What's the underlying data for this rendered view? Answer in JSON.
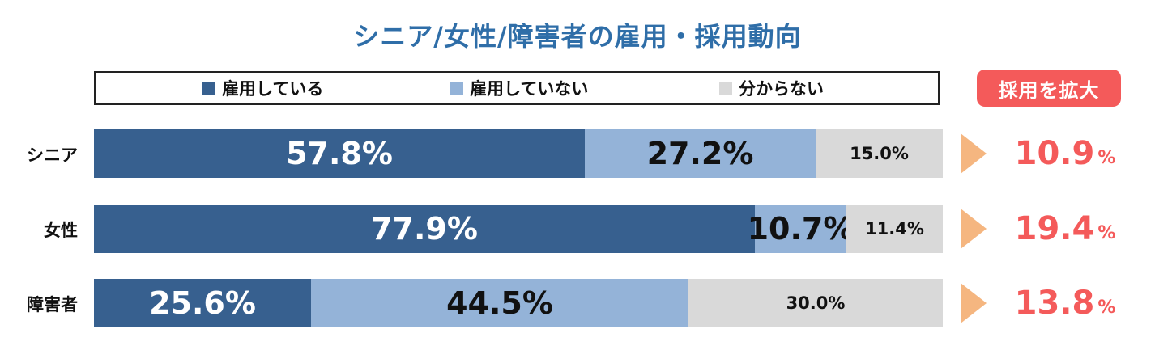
{
  "title": "シニア/女性/障害者の雇用・採用動向",
  "badge": "採用を拡大",
  "colors": {
    "employed": "#37608f",
    "not_employed": "#94b3d8",
    "unknown": "#d9d9d9",
    "accent": "#f45a5a",
    "arrow": "#f5b680"
  },
  "legend": [
    {
      "label": "雇用している",
      "color": "#37608f"
    },
    {
      "label": "雇用していない",
      "color": "#94b3d8"
    },
    {
      "label": "分からない",
      "color": "#d9d9d9"
    }
  ],
  "unit": "%",
  "chart_data": {
    "type": "bar",
    "orientation": "horizontal",
    "stacked": true,
    "title": "シニア/女性/障害者の雇用・採用動向",
    "categories": [
      "シニア",
      "女性",
      "障害者"
    ],
    "series": [
      {
        "name": "雇用している",
        "values": [
          57.8,
          77.9,
          25.6
        ],
        "labels": [
          "57.8%",
          "77.9%",
          "25.6%"
        ]
      },
      {
        "name": "雇用していない",
        "values": [
          27.2,
          10.7,
          44.5
        ],
        "labels": [
          "27.2%",
          "10.7%",
          "44.5%"
        ]
      },
      {
        "name": "分からない",
        "values": [
          15.0,
          11.4,
          30.0
        ],
        "labels": [
          "15.0%",
          "11.4%",
          "30.0%"
        ]
      }
    ],
    "annotation": {
      "label": "採用を拡大",
      "values": [
        10.9,
        19.4,
        13.8
      ],
      "labels": [
        "10.9",
        "19.4",
        "13.8"
      ]
    },
    "legend_position": "top"
  }
}
